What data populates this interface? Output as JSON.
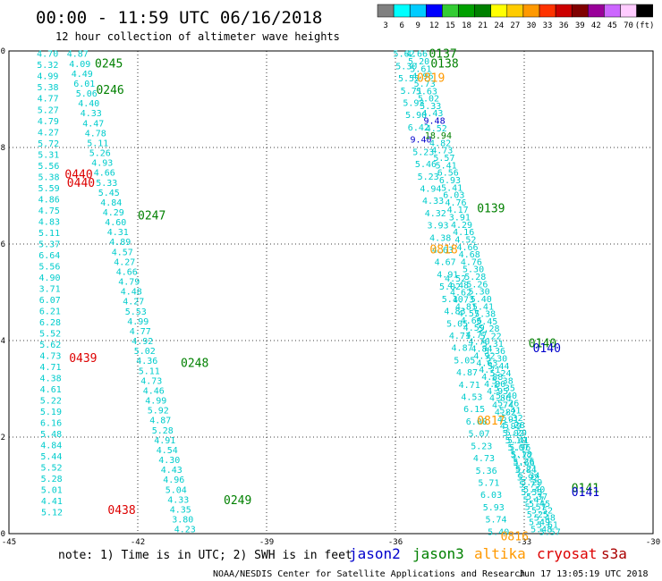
{
  "header": {
    "title": "00:00 - 11:59 UTC 06/16/2018",
    "subtitle": "12 hour collection of altimeter wave heights"
  },
  "colorbar": {
    "labels": [
      "3",
      "6",
      "9",
      "12",
      "15",
      "18",
      "21",
      "24",
      "27",
      "30",
      "33",
      "36",
      "39",
      "42",
      "45",
      "70",
      "(ft)"
    ],
    "colors": [
      "#808080",
      "#00ffff",
      "#00ccff",
      "#0000ff",
      "#33cc33",
      "#00a000",
      "#008000",
      "#ffff00",
      "#ffcc00",
      "#ff9900",
      "#ff3300",
      "#cc0000",
      "#800000",
      "#990099",
      "#cc66ff",
      "#ffccff",
      "#000000"
    ]
  },
  "footer": {
    "note": "note: 1) Time is in UTC; 2) SWH is in feet",
    "credit": "NOAA/NESDIS Center for Satellite Applications and Research",
    "timestamp": "Jun 17 13:05:19 UTC 2018"
  },
  "chart_data": {
    "type": "scatter",
    "xlim": [
      -45,
      -30
    ],
    "ylim": [
      0,
      10
    ],
    "x_ticks": [
      -45,
      -42,
      -39,
      -36,
      -33,
      -30
    ],
    "y_ticks": [
      0,
      2,
      4,
      6,
      8,
      10
    ],
    "grid": true,
    "legend_position": "bottom",
    "legend": [
      {
        "name": "jason2",
        "color": "#0000cc"
      },
      {
        "name": "jason3",
        "color": "#008000"
      },
      {
        "name": "altika",
        "color": "#ff9900"
      },
      {
        "name": "cryosat",
        "color": "#dd0000"
      },
      {
        "name": "s3a",
        "color": "#aa0000"
      }
    ],
    "value_colors": {
      "low": "#00cccc",
      "mid": "#0000cc",
      "high": "#008000"
    },
    "tracks": [
      {
        "start": [
          -44.1,
          9.95
        ],
        "end": [
          -44.0,
          0.45
        ],
        "values": [
          "4.70",
          "5.32",
          "4.99",
          "5.38",
          "4.77",
          "5.27",
          "4.79",
          "4.27",
          "5.72",
          "5.31",
          "5.56",
          "5.38",
          "5.59",
          "4.86",
          "4.75",
          "4.83",
          "5.11",
          "5.37",
          "6.64",
          "5.56",
          "4.90",
          "3.71",
          "6.07",
          "6.21",
          "6.28",
          "5.52",
          "5.62",
          "4.73",
          "4.71",
          "4.38",
          "4.61",
          "5.22",
          "5.19",
          "6.16",
          "5.48",
          "4.84",
          "5.44",
          "5.52",
          "5.28",
          "5.01",
          "4.41",
          "5.12"
        ]
      },
      {
        "start": [
          -43.4,
          9.95
        ],
        "end": [
          -40.9,
          0.1
        ],
        "values": [
          "4.87",
          "4.09",
          "4.49",
          "6.01",
          "5.06",
          "4.40",
          "4.33",
          "4.47",
          "4.78",
          "5.11",
          "5.26",
          "4.93",
          "4.66",
          "5.33",
          "5.45",
          "4.84",
          "4.29",
          "4.60",
          "4.31",
          "4.89",
          "4.57",
          "4.27",
          "4.66",
          "4.79",
          "4.48",
          "4.27",
          "5.53",
          "4.99",
          "4.77",
          "4.92",
          "5.02",
          "4.36",
          "5.11",
          "4.73",
          "4.46",
          "4.99",
          "5.92",
          "4.87",
          "5.28",
          "4.91",
          "4.54",
          "4.30",
          "4.43",
          "4.96",
          "5.04",
          "4.33",
          "4.35",
          "3.80",
          "4.23"
        ]
      },
      {
        "start": [
          -35.8,
          9.95
        ],
        "end": [
          -33.6,
          0.05
        ],
        "values": [
          "5.62",
          "5.30",
          "5.57",
          "5.71",
          "5.93",
          "5.90",
          "6.42",
          "9.40",
          "5.23",
          "5.46",
          "5.23",
          "4.94",
          "4.33",
          "4.32",
          "3.93",
          "4.38",
          "4.63",
          "4.67",
          "4.91",
          "5.02",
          "5.10",
          "4.83",
          "5.05",
          "4.71",
          "4.87",
          "5.05",
          "4.87",
          "4.71",
          "4.53",
          "6.15",
          "6.08",
          "5.07",
          "5.23",
          "4.73",
          "5.36",
          "5.71",
          "6.03",
          "5.93",
          "5.74",
          "5.40"
        ]
      },
      {
        "start": [
          -35.5,
          9.95
        ],
        "end": [
          -32.6,
          0.1
        ],
        "values": [
          "4.66",
          "5.20",
          "5.61",
          "4.96",
          "5.73",
          "5.63",
          "5.02",
          "5.33",
          "4.43",
          "9.48",
          "4.52",
          "18.94",
          "4.82",
          "4.73",
          "5.57",
          "5.41",
          "6.56",
          "6.93",
          "5.41",
          "6.03",
          "4.76",
          "4.17",
          "3.91",
          "4.29",
          "4.16",
          "4.52",
          "4.66",
          "4.68",
          "4.76",
          "5.30",
          "5.28",
          "5.26",
          "5.30",
          "5.40",
          "5.41",
          "5.38",
          "5.45",
          "5.28",
          "5.22",
          "5.31",
          "5.36",
          "5.30",
          "5.44",
          "5.24",
          "5.38",
          "5.35",
          "5.40",
          "5.26",
          "5.41",
          "5.32",
          "5.28",
          "5.20",
          "5.41",
          "5.96",
          "5.72",
          "5.66",
          "5.84",
          "5.92",
          "5.73",
          "5.53",
          "5.47",
          "5.57",
          "5.25",
          "5.49",
          "5.48"
        ]
      },
      {
        "start": [
          -34.6,
          5.3
        ],
        "end": [
          -32.4,
          0.05
        ],
        "values": [
          "4.52",
          "4.48",
          "4.62",
          "4.73",
          "4.81",
          "4.57",
          "4.66",
          "4.59",
          "4.77",
          "4.70",
          "4.84",
          "4.92",
          "4.63",
          "4.71",
          "4.88",
          "4.80",
          "4.95",
          "4.86",
          "4.74",
          "4.82",
          "4.91",
          "4.99",
          "5.02",
          "5.10",
          "5.07",
          "5.18",
          "5.26",
          "5.21",
          "5.34",
          "5.29",
          "5.40",
          "5.37",
          "5.45",
          "5.52",
          "5.48",
          "5.61",
          "5.57"
        ]
      }
    ],
    "pass_labels": [
      {
        "text": "0245",
        "x": -43.0,
        "y": 9.75,
        "sat": "jason3"
      },
      {
        "text": "0246",
        "x": -42.97,
        "y": 9.2,
        "sat": "jason3"
      },
      {
        "text": "0440",
        "x": -43.7,
        "y": 7.45,
        "sat": "cryosat"
      },
      {
        "text": "0440",
        "x": -43.65,
        "y": 7.28,
        "sat": "cryosat"
      },
      {
        "text": "0247",
        "x": -42.0,
        "y": 6.6,
        "sat": "jason3"
      },
      {
        "text": "0439",
        "x": -43.6,
        "y": 3.65,
        "sat": "cryosat"
      },
      {
        "text": "0248",
        "x": -41.0,
        "y": 3.55,
        "sat": "jason3"
      },
      {
        "text": "0249",
        "x": -40.0,
        "y": 0.7,
        "sat": "jason3"
      },
      {
        "text": "0438",
        "x": -42.7,
        "y": 0.5,
        "sat": "cryosat"
      },
      {
        "text": "0137",
        "x": -35.22,
        "y": 9.95,
        "sat": "jason3"
      },
      {
        "text": "0138",
        "x": -35.18,
        "y": 9.75,
        "sat": "jason3"
      },
      {
        "text": "0819",
        "x": -35.5,
        "y": 9.45,
        "sat": "altika"
      },
      {
        "text": "0139",
        "x": -34.1,
        "y": 6.75,
        "sat": "jason3"
      },
      {
        "text": "0818",
        "x": -35.2,
        "y": 5.9,
        "sat": "altika"
      },
      {
        "text": "0140",
        "x": -32.9,
        "y": 3.95,
        "sat": "jason3"
      },
      {
        "text": "0140",
        "x": -32.8,
        "y": 3.85,
        "sat": "jason2"
      },
      {
        "text": "0817",
        "x": -34.1,
        "y": 2.35,
        "sat": "altika"
      },
      {
        "text": "0141",
        "x": -31.9,
        "y": 0.95,
        "sat": "jason3"
      },
      {
        "text": "0141",
        "x": -31.9,
        "y": 0.87,
        "sat": "jason2"
      },
      {
        "text": "0816",
        "x": -33.55,
        "y": -0.05,
        "sat": "altika"
      }
    ]
  }
}
